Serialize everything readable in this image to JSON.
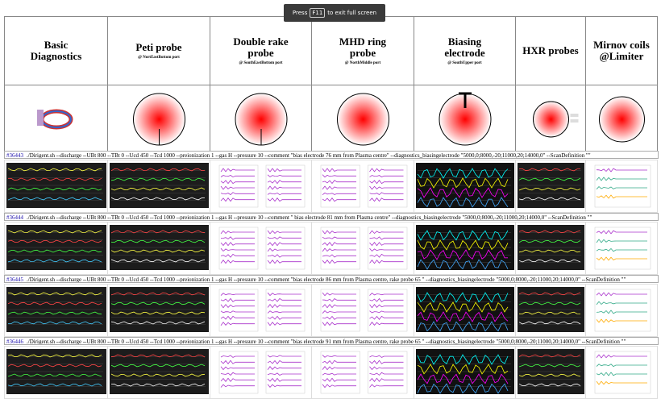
{
  "overlay": {
    "prefix": "Press",
    "key": "F11",
    "suffix": "to exit full screen"
  },
  "header": [
    {
      "title": "Basic Diagnostics"
    },
    {
      "title": "Peti probe",
      "port": "@ NortEastBottom port"
    },
    {
      "title": "Double rake probe",
      "port": "@ SouthEastBottom port"
    },
    {
      "title": "MHD ring probe",
      "port": "@ NorthMiddle port"
    },
    {
      "title": "Biasing electrode",
      "port": "@ SouthUpper port"
    },
    {
      "title": "HXR probes"
    },
    {
      "title": "Mirnov coils @Limiter"
    }
  ],
  "shots": [
    {
      "id": "#36443",
      "command": "./Dirigent.sh --discharge --UBt 800 --TBt 0 --Ucd 450 --Tcd 1000 --preionization 1 --gas H --pressure 10 --comment \"bias electrode 76 mm from Plasma centre\" --diagnostics_biasingelectrode \"5000,0;8000,-20;11000,20;14000,0\" --ScanDefinition \"\""
    },
    {
      "id": "#36444",
      "command": "./Dirigent.sh --discharge --UBt 800 --TBt 0 --Ucd 450 --Tcd 1000 --preionization 1 --gas H --pressure 10 --comment \" bias electrode 81 mm from Plasma centre\" --diagnostics_biasingelectrode \"5000,0;8000,-20;11000,20;14000,0\" --ScanDefinition \"\""
    },
    {
      "id": "#36445",
      "command": "./Dirigent.sh --discharge --UBt 800 --TBt 0 --Ucd 450 --Tcd 1000 --preionization 1 --gas H --pressure 10 --comment \"bias electrode 86 mm from Plasma centre, rake probe 65 \" --diagnostics_biasingelectrode \"5000,0;8000,-20;11000,20;14000,0\" --ScanDefinition \"\""
    },
    {
      "id": "#36446",
      "command": "./Dirigent.sh --discharge --UBt 800 --TBt 0 --Ucd 450 --Tcd 1000 --preionization 1 --gas H --pressure 10 --comment \"bias electrode 91 mm from Plasma centre, rake probe 65 \" --diagnostics_biasingelectrode \"5000,0;8000,-20;11000,20;14000,0\" --ScanDefinition \"\""
    }
  ]
}
